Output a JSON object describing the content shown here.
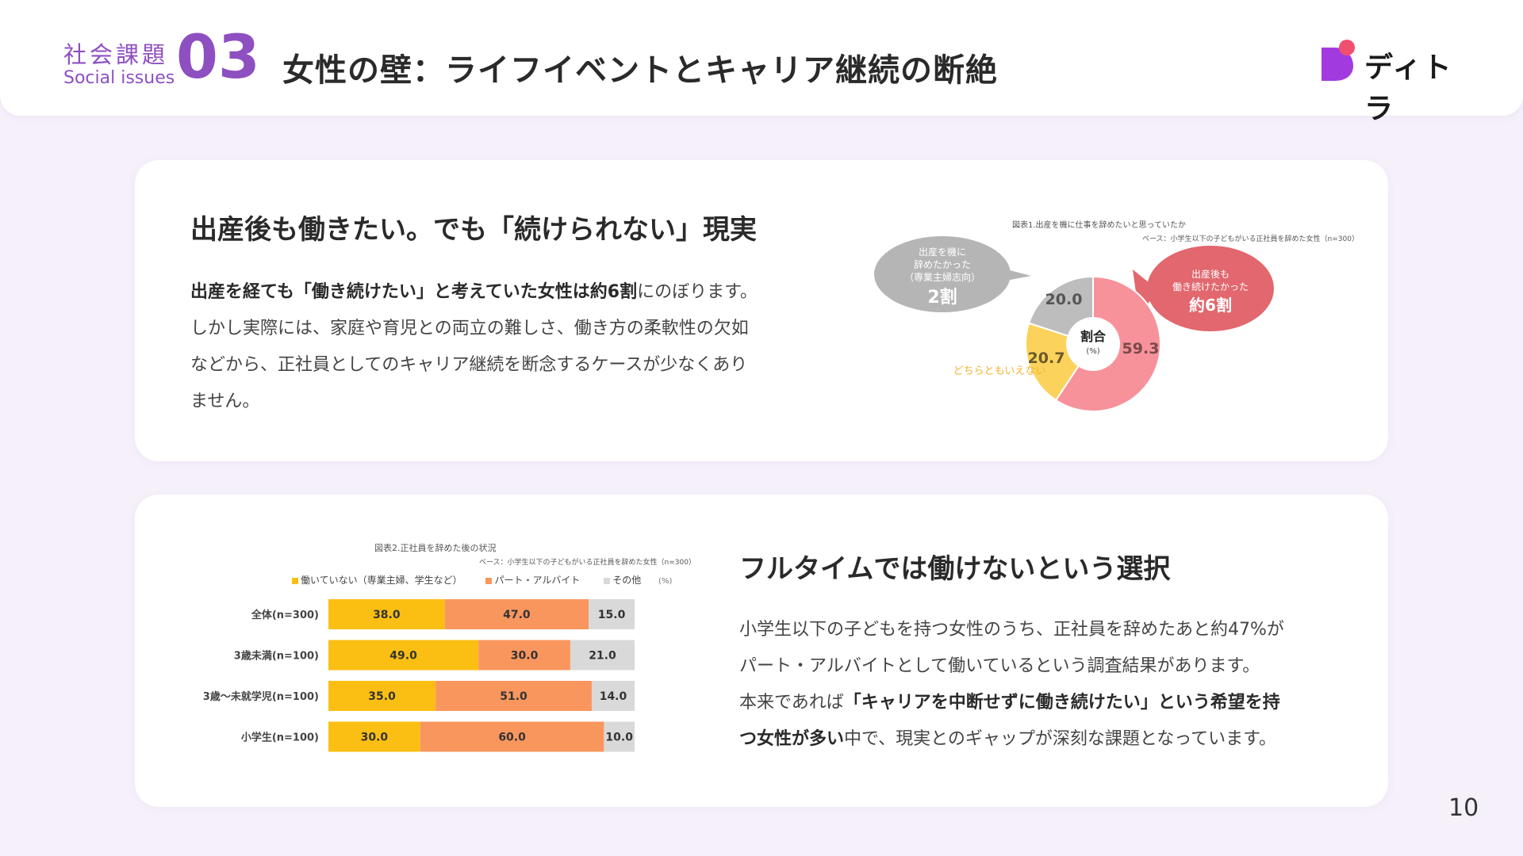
{
  "header": {
    "section_jp": "社会課題",
    "section_en": "Social issues",
    "section_number": "03",
    "title": "女性の壁：ライフイベントとキャリア継続の断絶",
    "logo_text": "ディトラ",
    "logo_colors": {
      "main": "#a13be0",
      "accent": "#f0506e"
    }
  },
  "card1": {
    "heading": "出産後も働きたい。でも「続けられない」現実",
    "para_bold": "出産を経ても「働き続けたい」と考えていた女性は約6割",
    "para_rest1": "にのぼります。",
    "para_line2": "しかし実際には、家庭や育児との両立の難しさ、働き方の柔軟性の欠如",
    "para_line3": "などから、正社員としてのキャリア継続を断念するケースが少なくあり",
    "para_line4": "ません。"
  },
  "card2": {
    "heading": "フルタイムでは働けないという選択",
    "para_line1": "小学生以下の子どもを持つ女性のうち、正社員を辞めたあと約47%が",
    "para_line2": "パート・アルバイトとして働いているという調査結果があります。",
    "para_line3_pre": "本来であれば",
    "para_line3_bold": "「キャリアを中断せずに働き続けたい」という希望を持",
    "para_line4_bold": "つ女性が多い",
    "para_line4_rest": "中で、現実とのギャップが深刻な課題となっています。"
  },
  "page_number": "10",
  "chart_data": [
    {
      "type": "pie",
      "title": "図表1.出産を機に仕事を辞めたいと思っていたか",
      "base_note": "ベース：小学生以下の子どもがいる正社員を辞めた女性（n=300）",
      "center_label": "割合",
      "center_unit": "(%)",
      "slices": [
        {
          "name": "出産後も働き続けたかった",
          "value": 59.3,
          "color": "#f7929a"
        },
        {
          "name": "どちらともいえない",
          "value": 20.7,
          "color": "#fbd35c"
        },
        {
          "name": "出産を機に辞めたかった",
          "value": 20.0,
          "color": "#bdbdbd"
        }
      ],
      "value_labels": [
        "59.3",
        "20.7",
        "20.0"
      ],
      "annotations": {
        "left_bubble_lines": [
          "出産を機に",
          "辞めたかった",
          "（専業主婦志向）"
        ],
        "left_bubble_big": "2割",
        "right_bubble_lines": [
          "出産後も",
          "働き続けたかった"
        ],
        "right_bubble_big": "約6割",
        "neutral_label": "どちらともいえない",
        "left_bubble_color": "#b5b5b5",
        "right_bubble_color": "#e2676e",
        "neutral_color": "#f0b532"
      }
    },
    {
      "type": "bar",
      "orientation": "horizontal",
      "stacked": true,
      "normalized": true,
      "title": "図表2.正社員を辞めた後の状況",
      "base_note": "ベース：小学生以下の子どもがいる正社員を辞めた女性（n=300）",
      "unit": "(%)",
      "categories": [
        "全体(n=300)",
        "3歳未満(n=100)",
        "3歳～未就学児(n=100)",
        "小学生(n=100)"
      ],
      "series": [
        {
          "name": "働いていない（専業主婦、学生など）",
          "color": "#fbbf13",
          "values": [
            38.0,
            49.0,
            35.0,
            30.0
          ],
          "labels": [
            "38.0",
            "49.0",
            "35.0",
            "30.0"
          ]
        },
        {
          "name": "パート・アルバイト",
          "color": "#f9965e",
          "values": [
            47.0,
            30.0,
            51.0,
            60.0
          ],
          "labels": [
            "47.0",
            "30.0",
            "51.0",
            "60.0"
          ]
        },
        {
          "name": "その他",
          "color": "#d9d9d9",
          "values": [
            15.0,
            21.0,
            14.0,
            10.0
          ],
          "labels": [
            "15.0",
            "21.0",
            "14.0",
            "10.0"
          ]
        }
      ],
      "xlim": [
        0,
        100
      ],
      "legend": "top"
    }
  ]
}
